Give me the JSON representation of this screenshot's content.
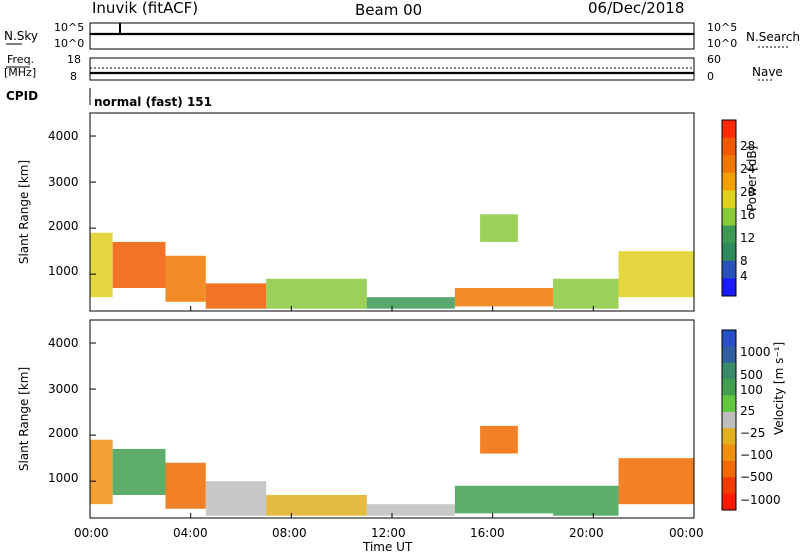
{
  "header": {
    "station": "Inuvik (fitACF)",
    "beam": "Beam 00",
    "date": "06/Dec/2018"
  },
  "top_panel": {
    "left_label": "N.Sky",
    "right_label": "N.Search",
    "left_ticks": [
      "10^5",
      "10^0"
    ],
    "right_ticks": [
      "10^5",
      "10^0"
    ]
  },
  "freq_panel": {
    "left_label": "Freq.",
    "left_unit": "[MHz]",
    "right_label": "Nave",
    "left_ticks": [
      "18",
      "8"
    ],
    "right_ticks": [
      "60",
      "0"
    ]
  },
  "cpid": {
    "label": "CPID",
    "value": "normal (fast) 151"
  },
  "x_axis": {
    "ticks": [
      "00:00",
      "04:00",
      "08:00",
      "12:00",
      "16:00",
      "20:00",
      "00:00"
    ],
    "label": "Time UT"
  },
  "colors": {
    "scale_power": [
      "#1a1aff",
      "#2852b8",
      "#2e8a5a",
      "#3c9a55",
      "#8ac83c",
      "#e0d020",
      "#f0a000",
      "#f07800",
      "#f05a00",
      "#ff2a00"
    ],
    "scale_velocity": [
      "#2850c8",
      "#2e60a0",
      "#3a8a6a",
      "#40a050",
      "#60c840",
      "#bebebe",
      "#e0b020",
      "#f09010",
      "#f06a00",
      "#f03c00",
      "#ff1a00"
    ]
  },
  "chart_data": [
    {
      "type": "heatmap",
      "title": "",
      "ylabel": "Slant Range [km]",
      "xlabel": "",
      "y_ticks": [
        "1000",
        "2000",
        "3000",
        "4000"
      ],
      "ylim": [
        200,
        4500
      ],
      "xlim_hours": [
        0,
        24
      ],
      "colorbar": {
        "label": "Power [dB]",
        "ticks": [
          "4",
          "8",
          "12",
          "16",
          "20",
          "24",
          "28"
        ],
        "range": [
          0,
          30
        ]
      },
      "echo_regions": [
        {
          "t_start": 0.0,
          "t_end": 0.9,
          "r_low": 500,
          "r_high": 1900,
          "level": "18"
        },
        {
          "t_start": 0.9,
          "t_end": 3.0,
          "r_low": 700,
          "r_high": 1700,
          "level": "26"
        },
        {
          "t_start": 3.0,
          "t_end": 4.6,
          "r_low": 400,
          "r_high": 1400,
          "level": "22"
        },
        {
          "t_start": 4.6,
          "t_end": 7.0,
          "r_low": 250,
          "r_high": 800,
          "level": "27"
        },
        {
          "t_start": 7.0,
          "t_end": 11.0,
          "r_low": 250,
          "r_high": 900,
          "level": "12"
        },
        {
          "t_start": 11.0,
          "t_end": 14.5,
          "r_low": 250,
          "r_high": 500,
          "level": "10"
        },
        {
          "t_start": 14.5,
          "t_end": 18.4,
          "r_low": 300,
          "r_high": 700,
          "level": "24"
        },
        {
          "t_start": 15.5,
          "t_end": 17.0,
          "r_low": 1700,
          "r_high": 2300,
          "level": "12"
        },
        {
          "t_start": 18.4,
          "t_end": 21.0,
          "r_low": 250,
          "r_high": 900,
          "level": "14"
        },
        {
          "t_start": 21.0,
          "t_end": 24.0,
          "r_low": 500,
          "r_high": 1500,
          "level": "16"
        }
      ]
    },
    {
      "type": "heatmap",
      "title": "",
      "ylabel": "Slant Range [km]",
      "xlabel": "Time UT",
      "y_ticks": [
        "1000",
        "2000",
        "3000",
        "4000"
      ],
      "ylim": [
        200,
        4500
      ],
      "xlim_hours": [
        0,
        24
      ],
      "colorbar": {
        "label": "Velocity [m s⁻¹]",
        "ticks": [
          "1000",
          "500",
          "100",
          "25",
          "−25",
          "−100",
          "−500",
          "−1000"
        ]
      },
      "echo_regions": [
        {
          "t_start": 0.0,
          "t_end": 0.9,
          "r_low": 500,
          "r_high": 1900,
          "level": "-100"
        },
        {
          "t_start": 0.9,
          "t_end": 3.0,
          "r_low": 700,
          "r_high": 1700,
          "level": "100"
        },
        {
          "t_start": 3.0,
          "t_end": 4.6,
          "r_low": 400,
          "r_high": 1400,
          "level": "-500"
        },
        {
          "t_start": 4.6,
          "t_end": 7.0,
          "r_low": 250,
          "r_high": 1000,
          "level": "0"
        },
        {
          "t_start": 7.0,
          "t_end": 11.0,
          "r_low": 250,
          "r_high": 700,
          "level": "-25"
        },
        {
          "t_start": 11.0,
          "t_end": 14.5,
          "r_low": 250,
          "r_high": 500,
          "level": "0"
        },
        {
          "t_start": 14.5,
          "t_end": 18.4,
          "r_low": 300,
          "r_high": 900,
          "level": "100"
        },
        {
          "t_start": 15.5,
          "t_end": 17.0,
          "r_low": 1600,
          "r_high": 2200,
          "level": "-500"
        },
        {
          "t_start": 18.4,
          "t_end": 21.0,
          "r_low": 250,
          "r_high": 900,
          "level": "100"
        },
        {
          "t_start": 21.0,
          "t_end": 24.0,
          "r_low": 500,
          "r_high": 1500,
          "level": "-500"
        }
      ]
    }
  ]
}
